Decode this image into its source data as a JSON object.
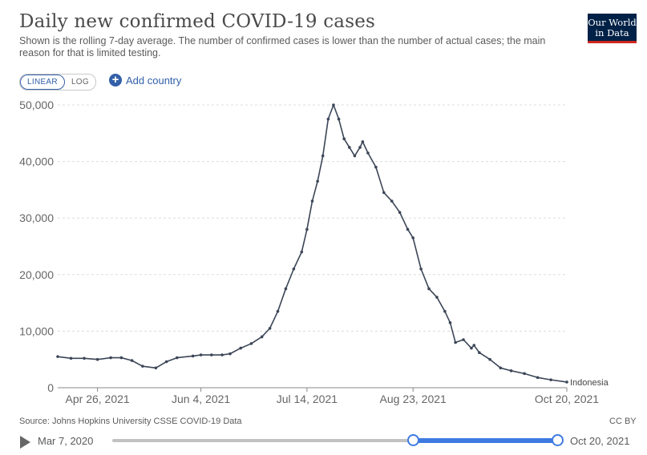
{
  "header": {
    "title": "Daily new confirmed COVID-19 cases",
    "subtitle": "Shown is the rolling 7-day average. The number of confirmed cases is lower than the number of actual cases; the main reason for that is limited testing.",
    "logo_line1": "Our World",
    "logo_line2": "in Data"
  },
  "controls": {
    "linear_label": "LINEAR",
    "log_label": "LOG",
    "add_country_label": "Add country",
    "add_icon": "plus-circle-icon"
  },
  "chart_data": {
    "type": "line",
    "title": "Daily new confirmed COVID-19 cases",
    "xlabel": "",
    "ylabel": "",
    "ylim": [
      0,
      50000
    ],
    "xlim": [
      "2021-04-11",
      "2021-10-20"
    ],
    "grid": "horizontal-dashed",
    "y_ticks": [
      0,
      10000,
      20000,
      30000,
      40000,
      50000
    ],
    "y_tick_labels": [
      "0",
      "10,000",
      "20,000",
      "30,000",
      "40,000",
      "50,000"
    ],
    "x_ticks": [
      "2021-04-26",
      "2021-06-04",
      "2021-07-14",
      "2021-08-23",
      "2021-10-20"
    ],
    "x_tick_labels": [
      "Apr 26, 2021",
      "Jun 4, 2021",
      "Jul 14, 2021",
      "Aug 23, 2021",
      "Oct 20, 2021"
    ],
    "series": [
      {
        "name": "Indonesia",
        "color": "#3c4657",
        "points": [
          [
            "2021-04-11",
            5500
          ],
          [
            "2021-04-16",
            5200
          ],
          [
            "2021-04-21",
            5200
          ],
          [
            "2021-04-26",
            5000
          ],
          [
            "2021-05-01",
            5300
          ],
          [
            "2021-05-05",
            5300
          ],
          [
            "2021-05-09",
            4800
          ],
          [
            "2021-05-13",
            3800
          ],
          [
            "2021-05-18",
            3500
          ],
          [
            "2021-05-22",
            4600
          ],
          [
            "2021-05-26",
            5300
          ],
          [
            "2021-06-01",
            5600
          ],
          [
            "2021-06-04",
            5800
          ],
          [
            "2021-06-08",
            5800
          ],
          [
            "2021-06-12",
            5800
          ],
          [
            "2021-06-15",
            6000
          ],
          [
            "2021-06-19",
            7000
          ],
          [
            "2021-06-23",
            7800
          ],
          [
            "2021-06-27",
            9000
          ],
          [
            "2021-06-30",
            10500
          ],
          [
            "2021-07-03",
            13500
          ],
          [
            "2021-07-06",
            17500
          ],
          [
            "2021-07-09",
            21000
          ],
          [
            "2021-07-12",
            24000
          ],
          [
            "2021-07-14",
            28000
          ],
          [
            "2021-07-16",
            33000
          ],
          [
            "2021-07-18",
            36500
          ],
          [
            "2021-07-20",
            41000
          ],
          [
            "2021-07-22",
            47500
          ],
          [
            "2021-07-24",
            50000
          ],
          [
            "2021-07-26",
            47500
          ],
          [
            "2021-07-28",
            44000
          ],
          [
            "2021-07-30",
            42500
          ],
          [
            "2021-08-01",
            41000
          ],
          [
            "2021-08-03",
            42500
          ],
          [
            "2021-08-04",
            43500
          ],
          [
            "2021-08-06",
            41500
          ],
          [
            "2021-08-09",
            39000
          ],
          [
            "2021-08-12",
            34500
          ],
          [
            "2021-08-15",
            33000
          ],
          [
            "2021-08-18",
            31000
          ],
          [
            "2021-08-21",
            28000
          ],
          [
            "2021-08-23",
            26500
          ],
          [
            "2021-08-26",
            21000
          ],
          [
            "2021-08-29",
            17500
          ],
          [
            "2021-09-01",
            16000
          ],
          [
            "2021-09-04",
            13500
          ],
          [
            "2021-09-06",
            11500
          ],
          [
            "2021-09-08",
            8000
          ],
          [
            "2021-09-11",
            8500
          ],
          [
            "2021-09-14",
            7000
          ],
          [
            "2021-09-15",
            7500
          ],
          [
            "2021-09-17",
            6200
          ],
          [
            "2021-09-21",
            5000
          ],
          [
            "2021-09-25",
            3500
          ],
          [
            "2021-09-29",
            3000
          ],
          [
            "2021-10-04",
            2500
          ],
          [
            "2021-10-09",
            1800
          ],
          [
            "2021-10-14",
            1400
          ],
          [
            "2021-10-20",
            1000
          ]
        ]
      }
    ]
  },
  "footer": {
    "source": "Source: Johns Hopkins University CSSE COVID-19 Data",
    "license": "CC BY"
  },
  "timeline": {
    "start_label": "Mar 7, 2020",
    "end_label": "Oct 20, 2021",
    "play_icon": "play-icon",
    "range_start": "2021-04-11",
    "range_end": "2021-10-20",
    "full_start": "2020-03-07",
    "full_end": "2021-10-20"
  }
}
